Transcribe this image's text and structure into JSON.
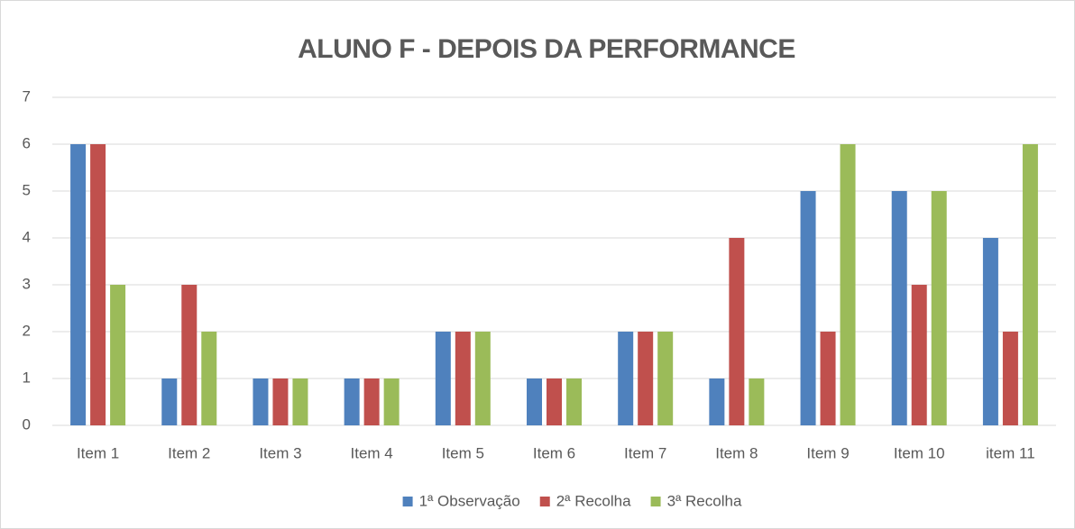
{
  "chart_data": {
    "type": "bar",
    "title": "ALUNO F - DEPOIS DA PERFORMANCE",
    "categories": [
      "Item 1",
      "Item 2",
      "Item 3",
      "Item 4",
      "Item 5",
      "Item 6",
      "Item 7",
      "Item 8",
      "Item 9",
      "Item 10",
      "item 11"
    ],
    "series": [
      {
        "name": "1ª Observação",
        "color": "#4f81bd",
        "values": [
          6,
          1,
          1,
          1,
          2,
          1,
          2,
          1,
          5,
          5,
          4
        ]
      },
      {
        "name": "2ª Recolha",
        "color": "#c0504d",
        "values": [
          6,
          3,
          1,
          1,
          2,
          1,
          2,
          4,
          2,
          3,
          2
        ]
      },
      {
        "name": "3ª Recolha",
        "color": "#9bbb59",
        "values": [
          3,
          2,
          1,
          1,
          2,
          1,
          2,
          1,
          6,
          5,
          6
        ]
      }
    ],
    "ylim": [
      0,
      7
    ],
    "yticks": [
      0,
      1,
      2,
      3,
      4,
      5,
      6,
      7
    ],
    "grid": true,
    "legend": "bottom"
  }
}
